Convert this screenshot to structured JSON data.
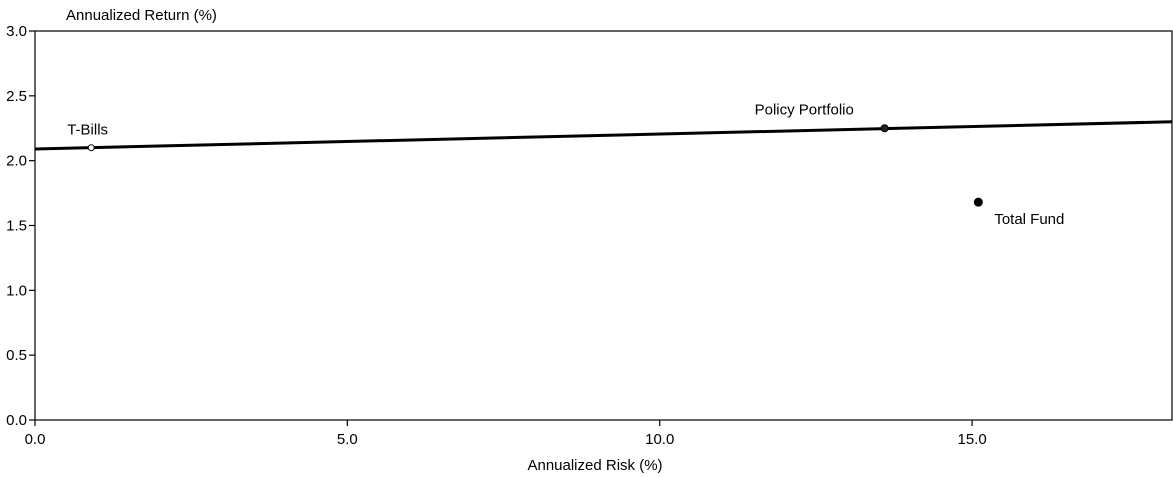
{
  "chart_data": {
    "type": "scatter",
    "ylabel": "Annualized Return (%)",
    "xlabel": "Annualized Risk (%)",
    "xlim": [
      0,
      18.2
    ],
    "ylim": [
      0,
      3.0
    ],
    "x_ticks": [
      "0.0",
      "5.0",
      "10.0",
      "15.0"
    ],
    "x_tick_values": [
      0,
      5,
      10,
      15
    ],
    "y_ticks": [
      "0.0",
      "0.5",
      "1.0",
      "1.5",
      "2.0",
      "2.5",
      "3.0"
    ],
    "y_tick_values": [
      0,
      0.5,
      1.0,
      1.5,
      2.0,
      2.5,
      3.0
    ],
    "points": [
      {
        "label": "T-Bills",
        "x": 0.9,
        "y": 2.1,
        "marker": "open-circle",
        "label_position": "above-left"
      },
      {
        "label": "Policy Portfolio",
        "x": 13.6,
        "y": 2.25,
        "marker": "small-dot",
        "label_position": "above-left"
      },
      {
        "label": "Total Fund",
        "x": 15.1,
        "y": 1.68,
        "marker": "filled-circle",
        "label_position": "below-right"
      }
    ],
    "line": {
      "x": [
        0,
        18.2
      ],
      "y": [
        2.09,
        2.3
      ]
    },
    "grid": false,
    "legend": "none"
  }
}
